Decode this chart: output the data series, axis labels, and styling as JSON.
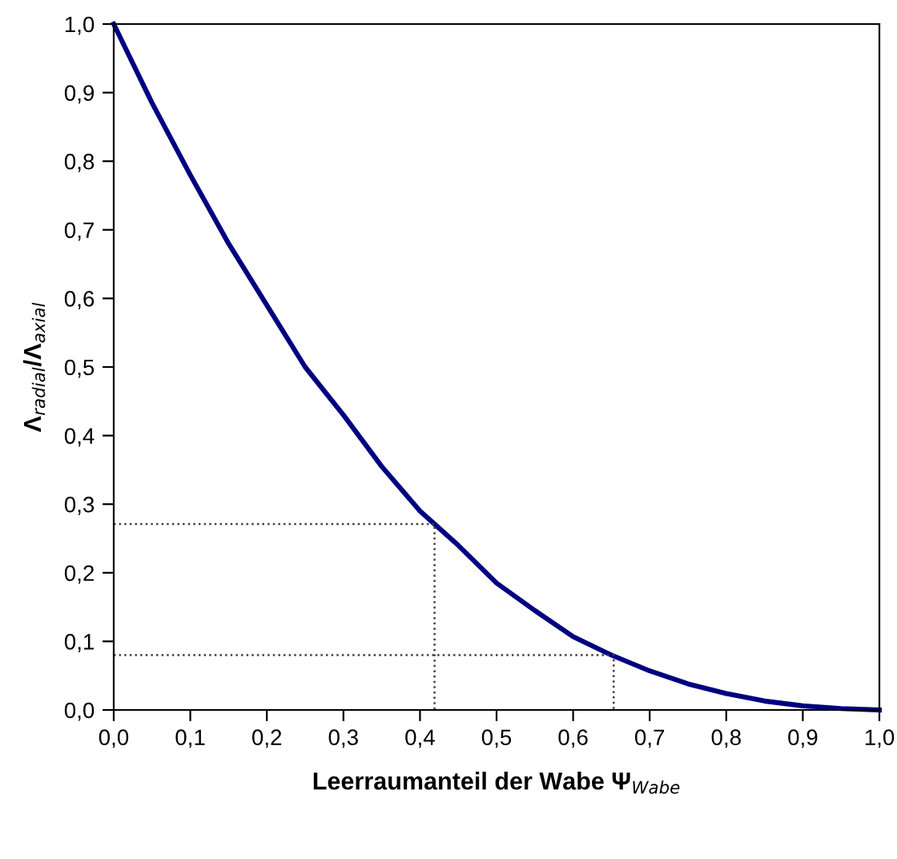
{
  "chart_data": {
    "type": "line",
    "xlabel": "Leerraumanteil der Wabe Ψ$_{Wabe}$",
    "ylabel": "Λ$_{radial}$/Λ$_{axial}$",
    "series": [
      {
        "color": "#000080",
        "line_style": "solid",
        "x": [
          0,
          0.05,
          0.1,
          0.15,
          0.2,
          0.25,
          0.3,
          0.35,
          0.4,
          0.42,
          0.45,
          0.5,
          0.55,
          0.6,
          0.65,
          0.7,
          0.75,
          0.8,
          0.85,
          0.9,
          0.95,
          1.0
        ],
        "values": [
          1.0,
          0.885,
          0.78,
          0.68,
          0.59,
          0.5,
          0.43,
          0.355,
          0.29,
          0.27,
          0.24,
          0.185,
          0.145,
          0.107,
          0.08,
          0.057,
          0.038,
          0.024,
          0.013,
          0.006,
          0.002,
          0
        ]
      },
      {
        "color": "#404040",
        "line_style": "dotted",
        "x": [
          0,
          0.419,
          0.419
        ],
        "values": [
          0.271,
          0.271,
          0
        ]
      },
      {
        "color": "#404040",
        "line_style": "dotted",
        "x": [
          0,
          0.653,
          0.653
        ],
        "values": [
          0.08,
          0.08,
          0
        ]
      }
    ],
    "xlim": [
      0,
      1
    ],
    "ylim": [
      0,
      1
    ],
    "xticks": [
      {
        "value": 0,
        "label": "0,0"
      },
      {
        "value": 0.1,
        "label": "0,1"
      },
      {
        "value": 0.2,
        "label": "0,2"
      },
      {
        "value": 0.3,
        "label": "0,3"
      },
      {
        "value": 0.4,
        "label": "0,4"
      },
      {
        "value": 0.5,
        "label": "0,5"
      },
      {
        "value": 0.6,
        "label": "0,6"
      },
      {
        "value": 0.7,
        "label": "0,7"
      },
      {
        "value": 0.8,
        "label": "0,8"
      },
      {
        "value": 0.9,
        "label": "0,9"
      },
      {
        "value": 1,
        "label": "1,0"
      }
    ],
    "yticks": [
      {
        "value": 0,
        "label": "0,0"
      },
      {
        "value": 0.1,
        "label": "0,1"
      },
      {
        "value": 0.2,
        "label": "0,2"
      },
      {
        "value": 0.3,
        "label": "0,3"
      },
      {
        "value": 0.4,
        "label": "0,4"
      },
      {
        "value": 0.5,
        "label": "0,5"
      },
      {
        "value": 0.6,
        "label": "0,6"
      },
      {
        "value": 0.7,
        "label": "0,7"
      },
      {
        "value": 0.8,
        "label": "0,8"
      },
      {
        "value": 0.9,
        "label": "0,9"
      },
      {
        "value": 1,
        "label": "1,0"
      }
    ],
    "grid": false,
    "legend": false
  }
}
